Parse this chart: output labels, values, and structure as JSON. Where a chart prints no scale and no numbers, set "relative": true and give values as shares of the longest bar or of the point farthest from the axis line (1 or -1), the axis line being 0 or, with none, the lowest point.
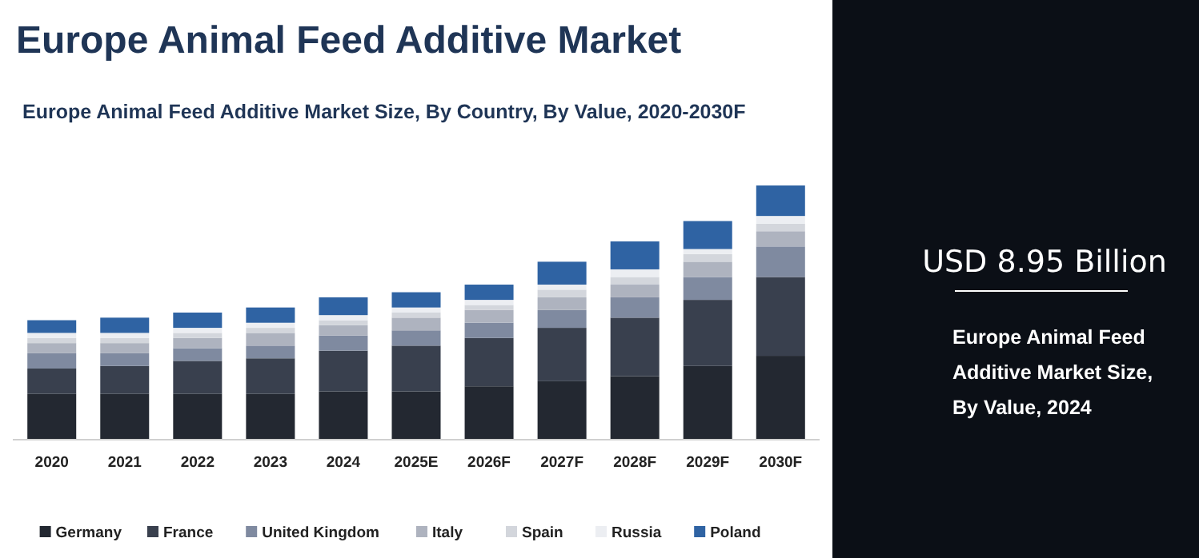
{
  "chart_data": [
    {
      "type": "bar",
      "title": "Europe Animal Feed Additive Market",
      "subtitle": "Europe Animal Feed Additive Market Size, By Country, By Value, 2020-2030F",
      "relative": true,
      "stacked": true,
      "legend": "bottom",
      "categories": [
        "2020",
        "2021",
        "2022",
        "2023",
        "2024",
        "2025E",
        "2026F",
        "2027F",
        "2028F",
        "2029F",
        "2030F"
      ],
      "series": [
        {
          "name": "Germany",
          "color": "#232831",
          "values": [
            0.18,
            0.18,
            0.18,
            0.18,
            0.19,
            0.19,
            0.21,
            0.23,
            0.25,
            0.29,
            0.33
          ]
        },
        {
          "name": "France",
          "color": "#39404e",
          "values": [
            0.1,
            0.11,
            0.13,
            0.14,
            0.16,
            0.18,
            0.19,
            0.21,
            0.23,
            0.26,
            0.31
          ]
        },
        {
          "name": "United Kingdom",
          "color": "#7f8aa0",
          "values": [
            0.06,
            0.05,
            0.05,
            0.05,
            0.06,
            0.06,
            0.06,
            0.07,
            0.08,
            0.09,
            0.12
          ]
        },
        {
          "name": "Italy",
          "color": "#aeb3bf",
          "values": [
            0.04,
            0.04,
            0.04,
            0.05,
            0.04,
            0.05,
            0.05,
            0.05,
            0.05,
            0.06,
            0.06
          ]
        },
        {
          "name": "Spain",
          "color": "#d3d6dc",
          "values": [
            0.02,
            0.02,
            0.02,
            0.02,
            0.02,
            0.02,
            0.02,
            0.03,
            0.03,
            0.03,
            0.03
          ]
        },
        {
          "name": "Russia",
          "color": "#eceef2",
          "values": [
            0.02,
            0.02,
            0.02,
            0.02,
            0.02,
            0.02,
            0.02,
            0.02,
            0.03,
            0.02,
            0.03
          ]
        },
        {
          "name": "Poland",
          "color": "#2f63a3",
          "values": [
            0.05,
            0.06,
            0.06,
            0.06,
            0.07,
            0.06,
            0.06,
            0.09,
            0.11,
            0.11,
            0.12
          ]
        }
      ]
    },
    {
      "type": "other",
      "title": "USD 8.95 Billion",
      "annotations": [
        "Europe Animal Feed Additive Market Size, By Value, 2024"
      ]
    }
  ]
}
